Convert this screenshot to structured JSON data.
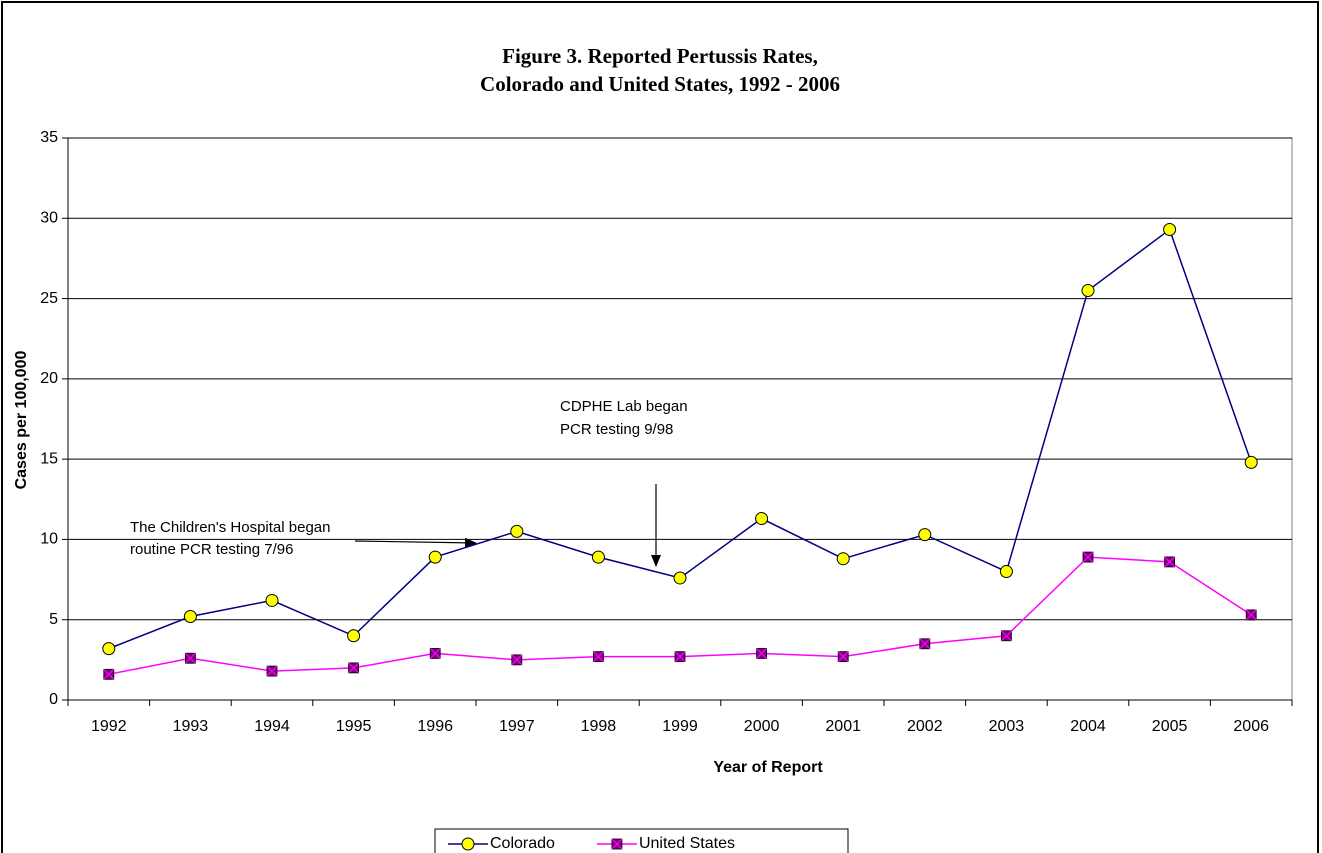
{
  "chart_data": {
    "type": "line",
    "title_lines": [
      "Figure 3.  Reported Pertussis Rates,",
      "Colorado and United States, 1992 - 2006"
    ],
    "x_label": "Year of Report",
    "y_label": "Cases per 100,000",
    "categories": [
      "1992",
      "1993",
      "1994",
      "1995",
      "1996",
      "1997",
      "1998",
      "1999",
      "2000",
      "2001",
      "2002",
      "2003",
      "2004",
      "2005",
      "2006"
    ],
    "series": [
      {
        "name": "Colorado",
        "color": "#000080",
        "marker_color": "#ffff00",
        "marker": "circle",
        "values": [
          3.2,
          5.2,
          6.2,
          4.0,
          8.9,
          10.5,
          8.9,
          7.6,
          11.3,
          8.8,
          10.3,
          8.0,
          25.5,
          29.3,
          14.8
        ]
      },
      {
        "name": "United States",
        "color": "#ff00ff",
        "marker_color": "#800080",
        "marker": "square",
        "values": [
          1.6,
          2.6,
          1.8,
          2.0,
          2.9,
          2.5,
          2.7,
          2.7,
          2.9,
          2.7,
          3.5,
          4.0,
          8.9,
          8.6,
          5.3
        ]
      }
    ],
    "ylim": [
      0,
      35
    ],
    "yticks": [
      0,
      5,
      10,
      15,
      20,
      25,
      30,
      35
    ],
    "grid": true,
    "legend": "bottom",
    "annotations": [
      {
        "lines": [
          "The  Children's Hospital began",
          "routine  PCR testing 7/96"
        ]
      },
      {
        "lines": [
          "CDPHE Lab began",
          "PCR testing 9/98"
        ]
      }
    ]
  }
}
